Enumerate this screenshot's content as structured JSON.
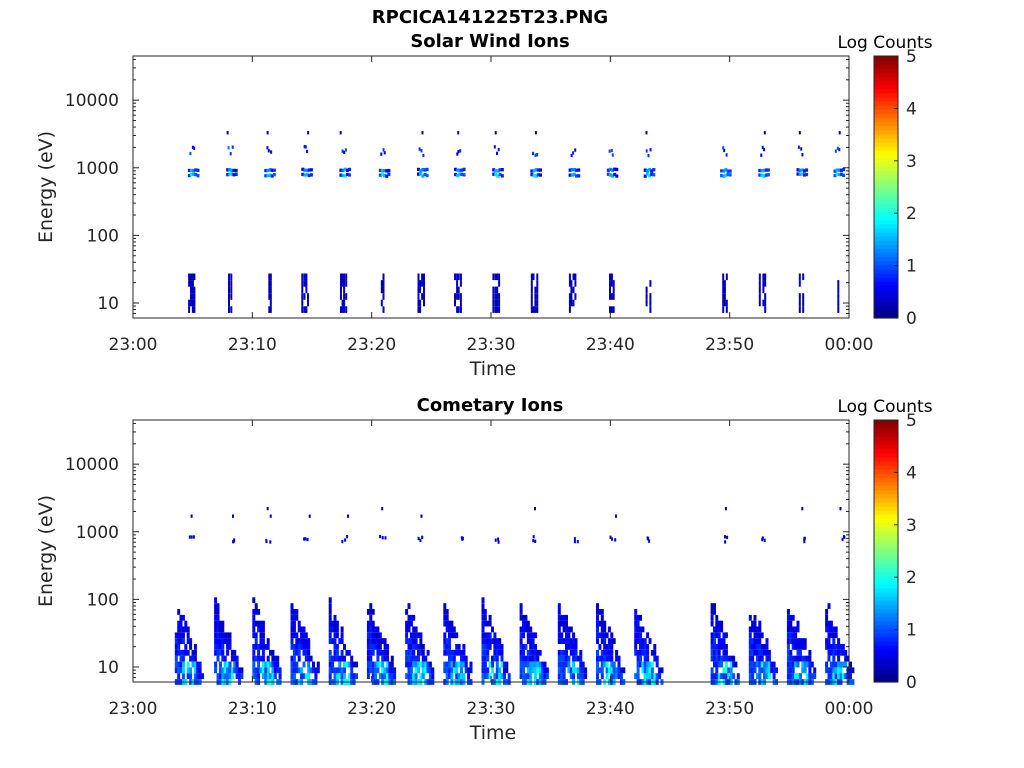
{
  "figure": {
    "title": "RPCICA141225T23.PNG"
  },
  "chart_data": [
    {
      "type": "heatmap",
      "title": "Solar Wind Ions",
      "xlabel": "Time",
      "ylabel": "Energy (eV)",
      "x_ticks": [
        "23:00",
        "23:10",
        "23:20",
        "23:30",
        "23:40",
        "23:50",
        "00:00"
      ],
      "x_range_minutes": [
        0,
        60
      ],
      "y_scale": "log",
      "y_ticks": [
        10,
        100,
        1000,
        10000
      ],
      "ylim": [
        6,
        45000
      ],
      "colorbar": {
        "label": "Log Counts",
        "ticks": [
          0,
          1,
          2,
          3,
          4,
          5
        ],
        "range": [
          0,
          5
        ],
        "colormap": "jet"
      },
      "sweep_start_minutes": [
        4.6,
        7.8,
        11.0,
        14.1,
        17.3,
        20.6,
        23.8,
        26.9,
        30.1,
        33.3,
        36.5,
        39.7,
        42.8,
        49.2,
        52.4,
        55.6,
        58.7
      ],
      "features": {
        "main_beam_energy_eV": [
          750,
          950
        ],
        "alpha_energy_eV": [
          1500,
          2100
        ],
        "low_energy_band_eV": [
          8,
          28
        ],
        "main_beam_peak_log_counts": 1.8,
        "low_energy_band_log_counts": 0.2
      }
    },
    {
      "type": "heatmap",
      "title": "Cometary Ions",
      "xlabel": "Time",
      "ylabel": "Energy (eV)",
      "x_ticks": [
        "23:00",
        "23:10",
        "23:20",
        "23:30",
        "23:40",
        "23:50",
        "00:00"
      ],
      "x_range_minutes": [
        0,
        60
      ],
      "y_scale": "log",
      "y_ticks": [
        10,
        100,
        1000,
        10000
      ],
      "ylim": [
        6,
        45000
      ],
      "colorbar": {
        "label": "Log Counts",
        "ticks": [
          0,
          1,
          2,
          3,
          4,
          5
        ],
        "range": [
          0,
          5
        ],
        "colormap": "jet"
      },
      "sweep_start_minutes": [
        3.5,
        6.8,
        10.0,
        13.2,
        16.4,
        19.6,
        22.8,
        26.0,
        29.2,
        32.4,
        35.6,
        38.8,
        42.0,
        48.4,
        51.6,
        54.8,
        58.0
      ],
      "features": {
        "high_energy_sparse_eV": [
          700,
          2200
        ],
        "cometary_energy_range_eV": [
          6,
          90
        ],
        "cometary_peak_log_counts": 2.0
      }
    }
  ]
}
